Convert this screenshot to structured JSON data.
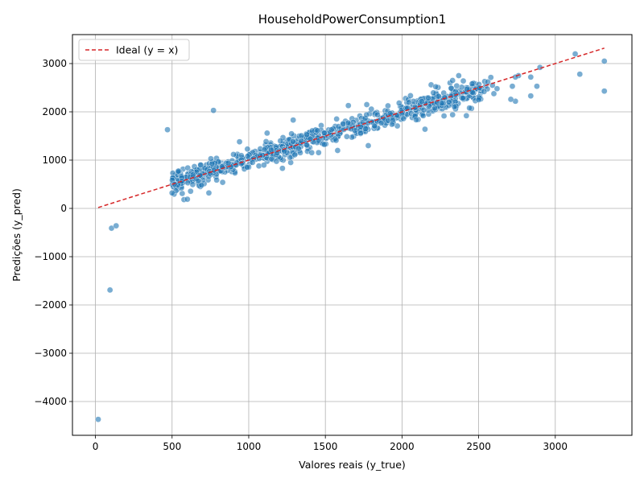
{
  "chart_data": {
    "type": "scatter",
    "title": "HouseholdPowerConsumption1",
    "xlabel": "Valores reais (y_true)",
    "ylabel": "Predições (y_pred)",
    "xlim": [
      -150,
      3500
    ],
    "ylim": [
      -4700,
      3600
    ],
    "xticks": [
      0,
      500,
      1000,
      1500,
      2000,
      2500,
      3000
    ],
    "yticks": [
      -4000,
      -3000,
      -2000,
      -1000,
      0,
      1000,
      2000,
      3000
    ],
    "grid": true,
    "legend_position": "top-left",
    "legend": [
      {
        "label": "Ideal (y = x)",
        "style": "dashed",
        "color": "#d62728"
      }
    ],
    "ideal_line": {
      "x": [
        18,
        3320
      ],
      "y": [
        18,
        3320
      ]
    },
    "point_color": "#1f77b4",
    "outliers": [
      [
        18,
        -4370
      ],
      [
        95,
        -1690
      ],
      [
        105,
        -410
      ],
      [
        135,
        -360
      ],
      [
        470,
        1630
      ],
      [
        770,
        2030
      ],
      [
        600,
        190
      ],
      [
        740,
        320
      ],
      [
        3130,
        3200
      ],
      [
        3160,
        2780
      ],
      [
        3320,
        3050
      ],
      [
        3320,
        2430
      ],
      [
        2900,
        2920
      ],
      [
        2840,
        2720
      ],
      [
        2840,
        2330
      ],
      [
        2760,
        2750
      ],
      [
        2740,
        2720
      ],
      [
        2720,
        2530
      ],
      [
        2740,
        2220
      ],
      [
        2710,
        2260
      ],
      [
        2880,
        2530
      ],
      [
        2620,
        2480
      ],
      [
        2590,
        2550
      ],
      [
        2560,
        2620
      ],
      [
        2500,
        2250
      ],
      [
        2420,
        1920
      ],
      [
        2440,
        2080
      ],
      [
        2330,
        1940
      ],
      [
        2370,
        2750
      ],
      [
        2400,
        2640
      ],
      [
        2330,
        2650
      ],
      [
        2190,
        2560
      ],
      [
        2220,
        2520
      ],
      [
        2150,
        1640
      ],
      [
        1780,
        1300
      ],
      [
        1580,
        1200
      ],
      [
        1220,
        830
      ],
      [
        1120,
        1560
      ],
      [
        1290,
        1830
      ],
      [
        1650,
        2130
      ],
      [
        1770,
        2150
      ],
      [
        830,
        540
      ],
      [
        940,
        1380
      ],
      [
        500,
        320
      ]
    ],
    "cluster": {
      "count": 760,
      "x_range": [
        500,
        2560
      ],
      "slope": 0.96,
      "intercept": 60,
      "spread": 115
    }
  }
}
